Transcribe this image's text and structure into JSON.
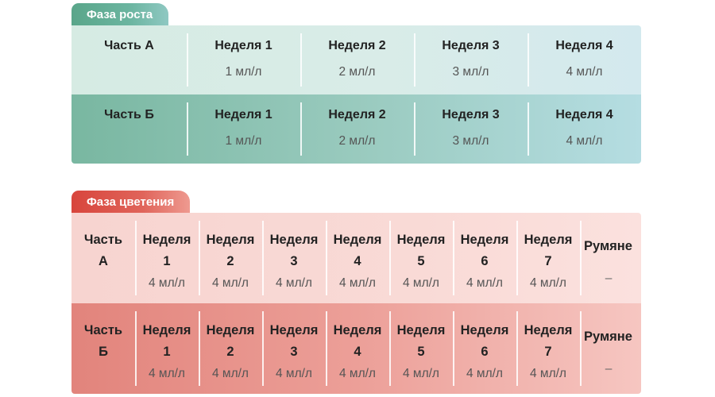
{
  "growth": {
    "title": "Фаза роста",
    "rows": [
      {
        "part": "Часть А",
        "weeks": [
          {
            "label": "Неделя 1",
            "dose": "1 мл/л"
          },
          {
            "label": "Неделя 2",
            "dose": "2 мл/л"
          },
          {
            "label": "Неделя 3",
            "dose": "3 мл/л"
          },
          {
            "label": "Неделя 4",
            "dose": "4 мл/л"
          }
        ]
      },
      {
        "part": "Часть Б",
        "weeks": [
          {
            "label": "Неделя 1",
            "dose": "1 мл/л"
          },
          {
            "label": "Неделя 2",
            "dose": "2 мл/л"
          },
          {
            "label": "Неделя 3",
            "dose": "3 мл/л"
          },
          {
            "label": "Неделя 4",
            "dose": "4 мл/л"
          }
        ]
      }
    ]
  },
  "bloom": {
    "title": "Фаза цветения",
    "rows": [
      {
        "part_line1": "Часть",
        "part_line2": "А",
        "weeks": [
          {
            "word": "Неделя",
            "num": "1",
            "dose": "4 мл/л"
          },
          {
            "word": "Неделя",
            "num": "2",
            "dose": "4 мл/л"
          },
          {
            "word": "Неделя",
            "num": "3",
            "dose": "4 мл/л"
          },
          {
            "word": "Неделя",
            "num": "4",
            "dose": "4 мл/л"
          },
          {
            "word": "Неделя",
            "num": "5",
            "dose": "4 мл/л"
          },
          {
            "word": "Неделя",
            "num": "6",
            "dose": "4 мл/л"
          },
          {
            "word": "Неделя",
            "num": "7",
            "dose": "4 мл/л"
          }
        ],
        "last_label": "Румяне",
        "last_value": "–"
      },
      {
        "part_line1": "Часть",
        "part_line2": "Б",
        "weeks": [
          {
            "word": "Неделя",
            "num": "1",
            "dose": "4 мл/л"
          },
          {
            "word": "Неделя",
            "num": "2",
            "dose": "4 мл/л"
          },
          {
            "word": "Неделя",
            "num": "3",
            "dose": "4 мл/л"
          },
          {
            "word": "Неделя",
            "num": "4",
            "dose": "4 мл/л"
          },
          {
            "word": "Неделя",
            "num": "5",
            "dose": "4 мл/л"
          },
          {
            "word": "Неделя",
            "num": "6",
            "dose": "4 мл/л"
          },
          {
            "word": "Неделя",
            "num": "7",
            "dose": "4 мл/л"
          }
        ],
        "last_label": "Румяне",
        "last_value": "–"
      }
    ]
  }
}
